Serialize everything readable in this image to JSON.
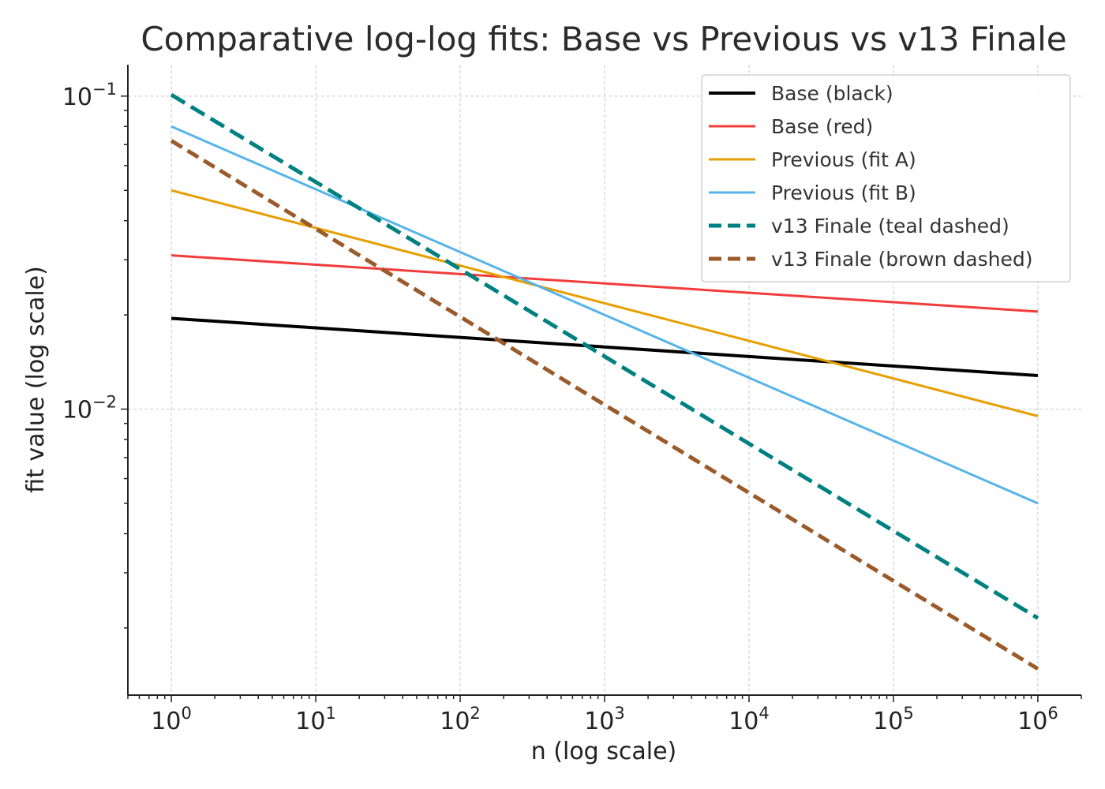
{
  "chart_data": {
    "type": "line",
    "title": "Comparative log-log fits: Base vs Previous vs v13 Finale",
    "xlabel": "n (log scale)",
    "ylabel": "fit value (log scale)",
    "xscale": "log",
    "yscale": "log",
    "xlim": [
      0.5,
      2000000
    ],
    "ylim": [
      0.00122,
      0.126
    ],
    "x_ticks": [
      {
        "value": 1,
        "base": "10",
        "exp": "0"
      },
      {
        "value": 10,
        "base": "10",
        "exp": "1"
      },
      {
        "value": 100,
        "base": "10",
        "exp": "2"
      },
      {
        "value": 1000,
        "base": "10",
        "exp": "3"
      },
      {
        "value": 10000,
        "base": "10",
        "exp": "4"
      },
      {
        "value": 100000,
        "base": "10",
        "exp": "5"
      },
      {
        "value": 1000000,
        "base": "10",
        "exp": "6"
      }
    ],
    "y_ticks": [
      {
        "value": 0.01,
        "base": "10",
        "exp": "−2"
      },
      {
        "value": 0.1,
        "base": "10",
        "exp": "−1"
      }
    ],
    "grid": true,
    "legend_position": "top-right",
    "series": [
      {
        "name": "Base (black)",
        "color": "#000000",
        "dashed": false,
        "x": [
          1,
          1000000
        ],
        "y": [
          0.0195,
          0.0128
        ]
      },
      {
        "name": "Base (red)",
        "color": "#f23c3c",
        "dashed": false,
        "x": [
          1,
          1000000
        ],
        "y": [
          0.031,
          0.0205
        ]
      },
      {
        "name": "Previous (fit A)",
        "color": "#e69f00",
        "dashed": false,
        "x": [
          1,
          1000000
        ],
        "y": [
          0.05,
          0.0095
        ]
      },
      {
        "name": "Previous (fit B)",
        "color": "#56b4e9",
        "dashed": false,
        "x": [
          1,
          1000000
        ],
        "y": [
          0.08,
          0.005
        ]
      },
      {
        "name": "v13 Finale (teal dashed)",
        "color": "#008080",
        "dashed": true,
        "x": [
          1,
          1000000
        ],
        "y": [
          0.101,
          0.00215
        ]
      },
      {
        "name": "v13 Finale (brown dashed)",
        "color": "#9a5a2a",
        "dashed": true,
        "x": [
          1,
          1000000
        ],
        "y": [
          0.072,
          0.00148
        ]
      }
    ]
  }
}
